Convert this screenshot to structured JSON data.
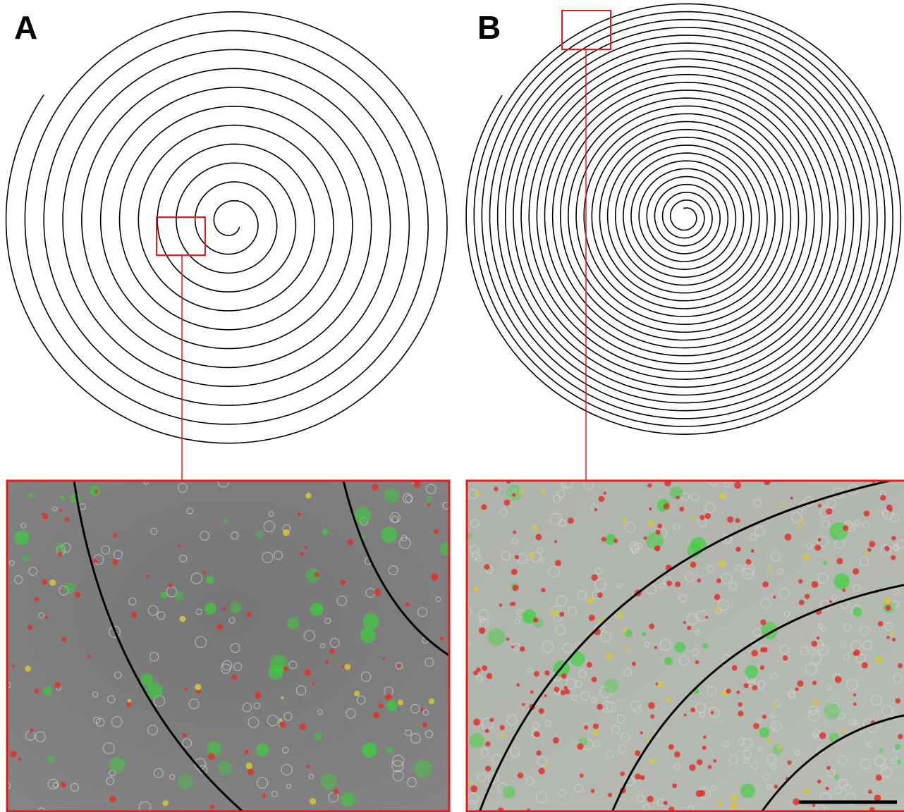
{
  "panels": [
    {
      "label": "A"
    },
    {
      "label": "B"
    }
  ]
}
